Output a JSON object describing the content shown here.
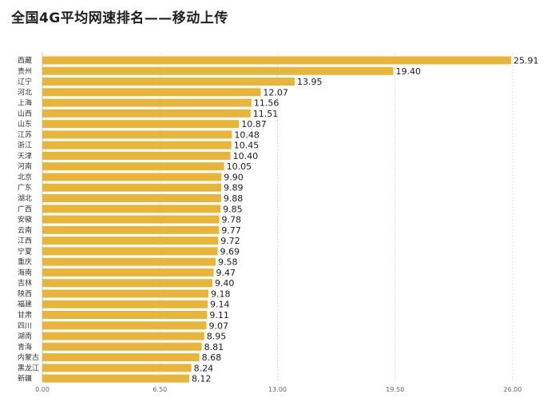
{
  "chart_data": {
    "type": "bar",
    "orientation": "horizontal",
    "title": "全国4G平均网速排名——移动上传",
    "xlabel": "",
    "ylabel": "",
    "xlim": [
      0,
      26
    ],
    "ticks": [
      0,
      6.5,
      13,
      19.5,
      26
    ],
    "tick_labels": [
      "0.00",
      "6.50",
      "13.00",
      "19.50",
      "26.00"
    ],
    "grid": true,
    "legend": "none",
    "bar_color": "#e8b53a",
    "categories": [
      "西藏",
      "贵州",
      "辽宁",
      "河北",
      "上海",
      "山西",
      "山东",
      "江苏",
      "浙江",
      "天津",
      "河南",
      "北京",
      "广东",
      "湖北",
      "广西",
      "安徽",
      "云南",
      "江西",
      "宁夏",
      "重庆",
      "海南",
      "吉林",
      "陕西",
      "福建",
      "甘肃",
      "四川",
      "湖南",
      "青海",
      "内蒙古",
      "黑龙江",
      "新疆"
    ],
    "values": [
      25.91,
      19.4,
      13.95,
      12.07,
      11.56,
      11.51,
      10.87,
      10.48,
      10.45,
      10.4,
      10.05,
      9.9,
      9.89,
      9.88,
      9.85,
      9.78,
      9.77,
      9.72,
      9.69,
      9.58,
      9.47,
      9.4,
      9.18,
      9.14,
      9.11,
      9.07,
      8.95,
      8.81,
      8.68,
      8.24,
      8.12
    ],
    "value_labels": [
      "25.91",
      "19.40",
      "13.95",
      "12.07",
      "11.56",
      "11.51",
      "10.87",
      "10.48",
      "10.45",
      "10.40",
      "10.05",
      "9.90",
      "9.89",
      "9.88",
      "9.85",
      "9.78",
      "9.77",
      "9.72",
      "9.69",
      "9.58",
      "9.47",
      "9.40",
      "9.18",
      "9.14",
      "9.11",
      "9.07",
      "8.95",
      "8.81",
      "8.68",
      "8.24",
      "8.12"
    ]
  }
}
